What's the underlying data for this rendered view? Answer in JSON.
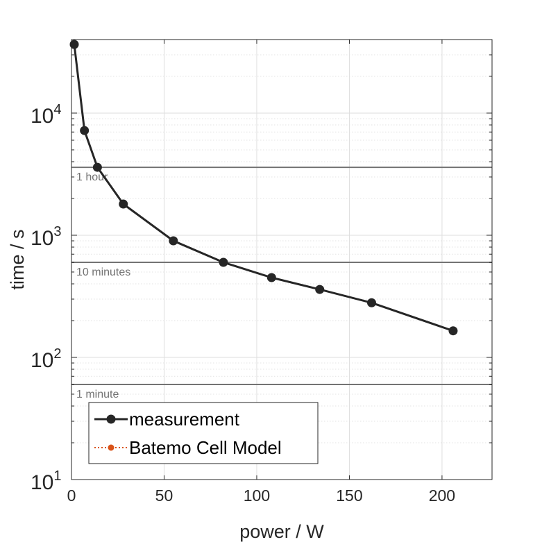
{
  "chart_data": {
    "type": "line",
    "title": "",
    "xlabel": "power / W",
    "ylabel": "time / s",
    "xlim": [
      0,
      227
    ],
    "ylim": [
      10,
      40000
    ],
    "yscale": "log",
    "grid": true,
    "x_ticks": [
      {
        "value": 0,
        "label": "0"
      },
      {
        "value": 50,
        "label": "50"
      },
      {
        "value": 100,
        "label": "100"
      },
      {
        "value": 150,
        "label": "150"
      },
      {
        "value": 200,
        "label": "200"
      }
    ],
    "y_ticks": [
      {
        "value": 10,
        "base": "10",
        "exp": "1"
      },
      {
        "value": 100,
        "base": "10",
        "exp": "2"
      },
      {
        "value": 1000,
        "base": "10",
        "exp": "3"
      },
      {
        "value": 10000,
        "base": "10",
        "exp": "4"
      }
    ],
    "series": [
      {
        "name": "measurement",
        "color": "#262626",
        "marker": "circle",
        "points": [
          {
            "x": 1.5,
            "y": 36500
          },
          {
            "x": 7,
            "y": 7200
          },
          {
            "x": 14,
            "y": 3600
          },
          {
            "x": 28,
            "y": 1800
          },
          {
            "x": 55,
            "y": 900
          },
          {
            "x": 82,
            "y": 600
          },
          {
            "x": 108,
            "y": 450
          },
          {
            "x": 134,
            "y": 360
          },
          {
            "x": 162,
            "y": 280
          },
          {
            "x": 206,
            "y": 165
          }
        ]
      },
      {
        "name": "Batemo Cell Model",
        "color": "#d95319",
        "marker": "circle",
        "line_style": "dotted",
        "points": []
      }
    ],
    "reference_lines": [
      {
        "y": 3600,
        "label": "1 hour",
        "color": "#737373"
      },
      {
        "y": 600,
        "label": "10 minutes",
        "color": "#737373"
      },
      {
        "y": 60,
        "label": "1 minute",
        "color": "#737373"
      }
    ],
    "legend": {
      "placement": "bottom-left",
      "entries": [
        "measurement",
        "Batemo Cell Model"
      ]
    }
  }
}
